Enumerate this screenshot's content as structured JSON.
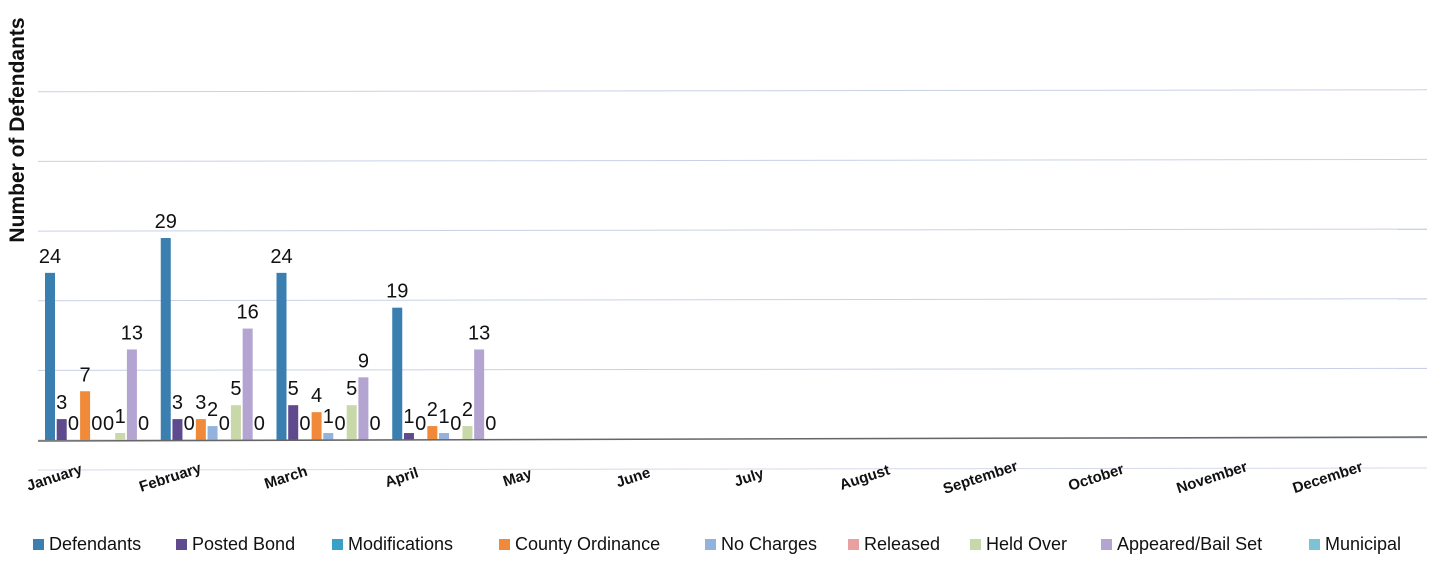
{
  "chart_data": {
    "type": "bar",
    "title": "",
    "ylabel": "Number of Defendants",
    "xlabel": "",
    "ylim": [
      0,
      56
    ],
    "grid": true,
    "legend_position": "bottom",
    "categories": [
      "January",
      "February",
      "March",
      "April",
      "May",
      "June",
      "July",
      "August",
      "September",
      "October",
      "November",
      "December"
    ],
    "series": [
      {
        "name": "Defendants",
        "color": "#3a7fb0",
        "values": [
          24,
          29,
          24,
          19,
          null,
          null,
          null,
          null,
          null,
          null,
          null,
          null
        ]
      },
      {
        "name": "Posted Bond",
        "color": "#5e4a8c",
        "values": [
          3,
          3,
          5,
          1,
          null,
          null,
          null,
          null,
          null,
          null,
          null,
          null
        ]
      },
      {
        "name": "Modifications",
        "color": "#3aa0c8",
        "values": [
          0,
          0,
          0,
          0,
          null,
          null,
          null,
          null,
          null,
          null,
          null,
          null
        ]
      },
      {
        "name": "County Ordinance",
        "color": "#f08a3a",
        "values": [
          7,
          3,
          4,
          2,
          null,
          null,
          null,
          null,
          null,
          null,
          null,
          null
        ]
      },
      {
        "name": "No Charges",
        "color": "#93b3dc",
        "values": [
          0,
          2,
          1,
          1,
          null,
          null,
          null,
          null,
          null,
          null,
          null,
          null
        ]
      },
      {
        "name": "Released",
        "color": "#e8a0a0",
        "values": [
          0,
          0,
          0,
          0,
          null,
          null,
          null,
          null,
          null,
          null,
          null,
          null
        ]
      },
      {
        "name": "Held Over",
        "color": "#c9d8a8",
        "values": [
          1,
          5,
          5,
          2,
          null,
          null,
          null,
          null,
          null,
          null,
          null,
          null
        ]
      },
      {
        "name": "Appeared/Bail Set",
        "color": "#b3a4d1",
        "values": [
          13,
          16,
          9,
          13,
          null,
          null,
          null,
          null,
          null,
          null,
          null,
          null
        ]
      },
      {
        "name": "Municipal",
        "color": "#7dc3d6",
        "values": [
          0,
          0,
          0,
          0,
          null,
          null,
          null,
          null,
          null,
          null,
          null,
          null
        ]
      }
    ]
  }
}
